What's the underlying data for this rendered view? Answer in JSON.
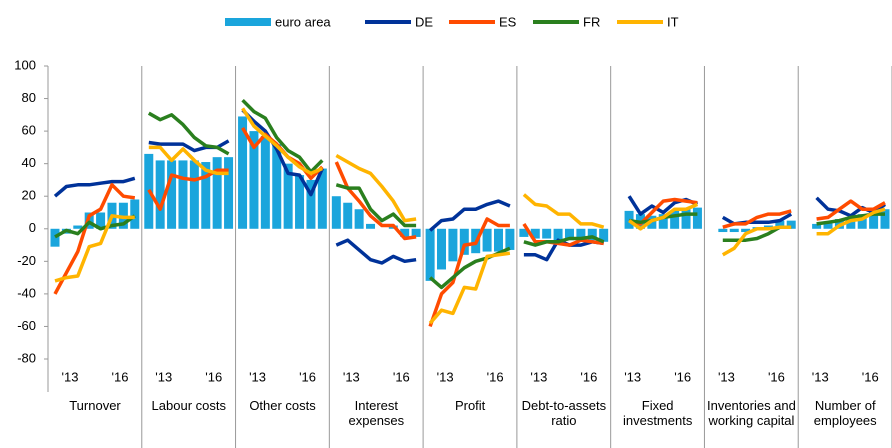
{
  "chart_data": {
    "type": "panel",
    "categories": [
      "Turnover",
      "Labour costs",
      "Other costs",
      "Interest expenses",
      "Profit",
      "Debt-to-assets ratio",
      "Fixed investments",
      "Inventories and working capital",
      "Number of employees"
    ],
    "xtick_labels": [
      "'13",
      "'16"
    ],
    "ylim": [
      -80,
      100
    ],
    "yticks": [
      -80,
      -60,
      -40,
      -20,
      0,
      20,
      40,
      60,
      80,
      100
    ],
    "series": [
      {
        "name": "euro area",
        "kind": "bar",
        "color": "#1aa5dc",
        "values": [
          [
            -11,
            -3,
            2,
            10,
            10,
            16,
            16,
            18
          ],
          [
            46,
            42,
            42,
            42,
            42,
            41,
            44,
            44
          ],
          [
            69,
            60,
            57,
            52,
            40,
            33,
            30,
            37
          ],
          [
            20,
            16,
            12,
            3,
            0,
            2,
            -5,
            -5
          ],
          [
            -32,
            -25,
            -20,
            -16,
            -15,
            -14,
            -14,
            -13
          ],
          [
            -5,
            -6,
            -6,
            -7,
            -7,
            -7,
            -7,
            -8
          ],
          [
            null,
            11,
            9,
            8,
            9,
            11,
            13,
            13
          ],
          [
            null,
            -2,
            -2,
            -2,
            1,
            2,
            5,
            5
          ],
          [
            null,
            3,
            4,
            6,
            7,
            9,
            10,
            12
          ]
        ]
      },
      {
        "name": "DE",
        "kind": "line",
        "color": "#003299",
        "values": [
          [
            20,
            26,
            27,
            27,
            28,
            29,
            29,
            31
          ],
          [
            53,
            52,
            52,
            52,
            48,
            50,
            50,
            54
          ],
          [
            73,
            66,
            60,
            49,
            34,
            33,
            21,
            37
          ],
          [
            -10,
            -7,
            -13,
            -19,
            -21,
            -17,
            -20,
            -19
          ],
          [
            -1,
            5,
            6,
            12,
            12,
            15,
            17,
            14
          ],
          [
            -16,
            -16,
            -19,
            -7,
            -10,
            -10,
            -8,
            -9
          ],
          [
            null,
            20,
            9,
            14,
            10,
            16,
            18,
            15
          ],
          [
            null,
            7,
            3,
            4,
            4,
            4,
            5,
            9
          ],
          [
            null,
            19,
            12,
            11,
            8,
            13,
            10,
            15
          ]
        ]
      },
      {
        "name": "ES",
        "kind": "line",
        "color": "#ff4b00",
        "values": [
          [
            -40,
            -27,
            -14,
            8,
            12,
            27,
            20,
            19
          ],
          [
            24,
            12,
            33,
            31,
            30,
            32,
            36,
            36
          ],
          [
            62,
            50,
            58,
            52,
            44,
            40,
            31,
            38
          ],
          [
            41,
            25,
            17,
            8,
            2,
            2,
            -6,
            -5
          ],
          [
            -60,
            -40,
            -33,
            -10,
            -9,
            6,
            2,
            2
          ],
          [
            3,
            -8,
            -8,
            -9,
            -10,
            -7,
            -8,
            -9
          ],
          [
            null,
            5,
            3,
            10,
            17,
            18,
            17,
            16
          ],
          [
            null,
            1,
            3,
            3,
            7,
            9,
            9,
            11
          ],
          [
            null,
            6,
            7,
            12,
            17,
            12,
            12,
            16
          ]
        ]
      },
      {
        "name": "FR",
        "kind": "line",
        "color": "#2a7f1e",
        "values": [
          [
            -5,
            -1,
            -3,
            4,
            0,
            2,
            3,
            8
          ],
          [
            71,
            67,
            70,
            64,
            56,
            51,
            50,
            46
          ],
          [
            79,
            72,
            68,
            56,
            48,
            44,
            35,
            42
          ],
          [
            27,
            25,
            25,
            12,
            5,
            9,
            2,
            2
          ],
          [
            -30,
            -36,
            -30,
            -24,
            -20,
            -18,
            -15,
            -12
          ],
          [
            -8,
            -10,
            -8,
            -8,
            -6,
            -6,
            -5,
            -8
          ],
          [
            null,
            5,
            4,
            5,
            7,
            8,
            9,
            9
          ],
          [
            null,
            -7,
            -7,
            -7,
            -6,
            -3,
            1,
            1
          ],
          [
            null,
            3,
            4,
            5,
            7,
            8,
            9,
            9
          ]
        ]
      },
      {
        "name": "IT",
        "kind": "line",
        "color": "#ffb400",
        "values": [
          [
            -32,
            -30,
            -29,
            -11,
            -9,
            8,
            7,
            7
          ],
          [
            50,
            50,
            42,
            49,
            42,
            36,
            34,
            34
          ],
          [
            74,
            63,
            57,
            51,
            44,
            38,
            34,
            37
          ],
          [
            45,
            41,
            37,
            34,
            26,
            17,
            5,
            6
          ],
          [
            -58,
            -50,
            -52,
            -36,
            -37,
            -17,
            -16,
            -15
          ],
          [
            21,
            15,
            14,
            9,
            9,
            3,
            3,
            1
          ],
          [
            null,
            5,
            0,
            5,
            7,
            12,
            12,
            15
          ],
          [
            null,
            -16,
            -12,
            -3,
            0,
            0,
            1,
            1
          ],
          [
            null,
            -3,
            -3,
            2,
            5,
            6,
            10,
            12
          ]
        ]
      }
    ]
  }
}
